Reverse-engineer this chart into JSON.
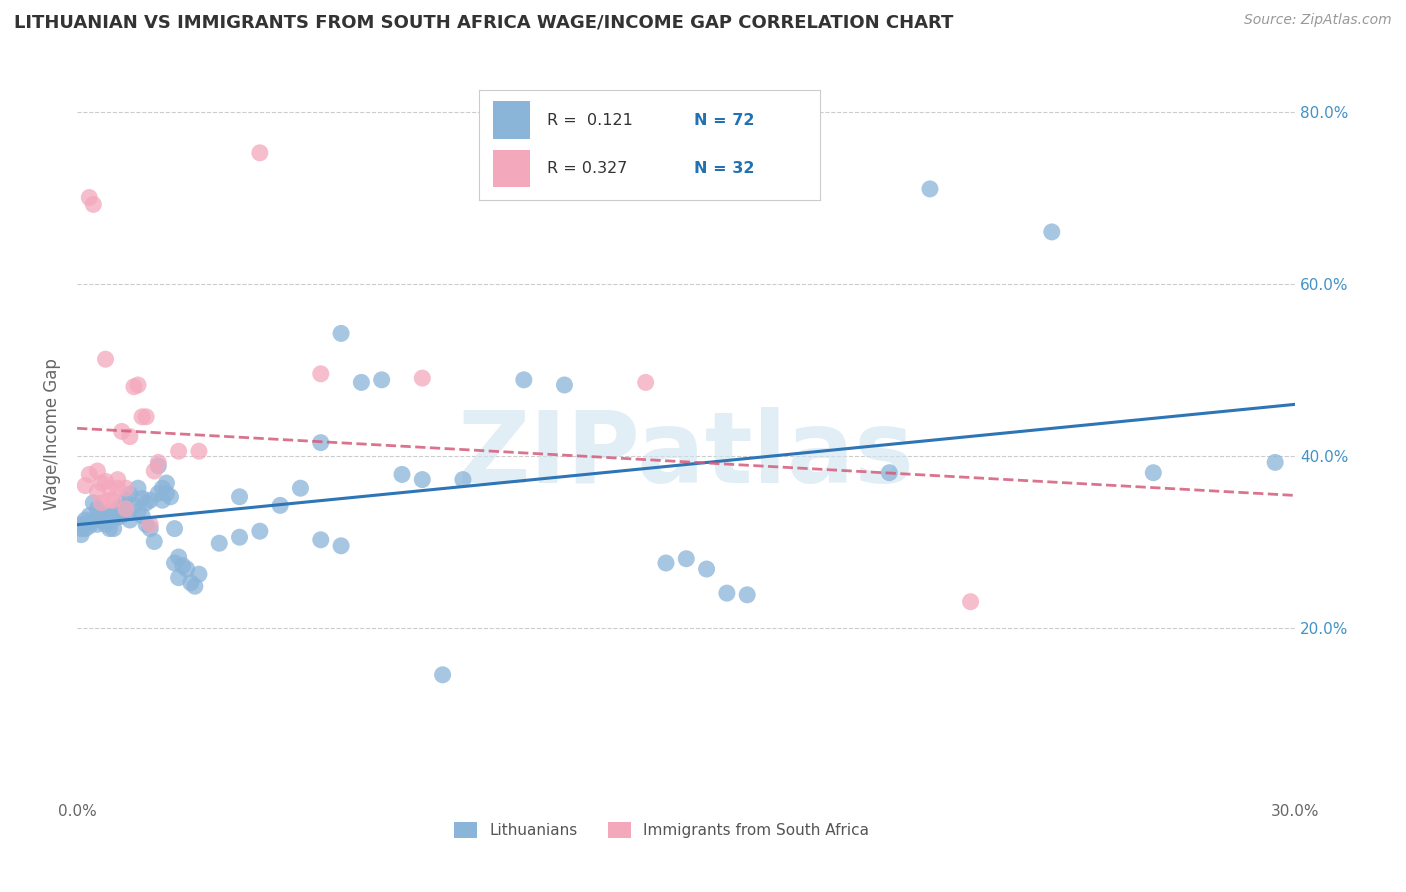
{
  "title": "LITHUANIAN VS IMMIGRANTS FROM SOUTH AFRICA WAGE/INCOME GAP CORRELATION CHART",
  "source": "Source: ZipAtlas.com",
  "ylabel": "Wage/Income Gap",
  "x_min": 0.0,
  "x_max": 0.3,
  "y_min": 0.0,
  "y_max": 0.85,
  "y_ticks": [
    0.2,
    0.4,
    0.6,
    0.8
  ],
  "y_tick_labels": [
    "20.0%",
    "40.0%",
    "60.0%",
    "80.0%"
  ],
  "legend_label1": "Lithuanians",
  "legend_label2": "Immigrants from South Africa",
  "blue_color": "#8ab4d8",
  "pink_color": "#f4a8bc",
  "blue_line_color": "#2e75b6",
  "pink_line_color": "#d45c7a",
  "watermark": "ZIPatlas",
  "blue_points": [
    [
      0.001,
      0.32
    ],
    [
      0.001,
      0.315
    ],
    [
      0.001,
      0.308
    ],
    [
      0.002,
      0.325
    ],
    [
      0.002,
      0.32
    ],
    [
      0.002,
      0.315
    ],
    [
      0.003,
      0.33
    ],
    [
      0.003,
      0.322
    ],
    [
      0.003,
      0.318
    ],
    [
      0.004,
      0.345
    ],
    [
      0.004,
      0.325
    ],
    [
      0.005,
      0.32
    ],
    [
      0.005,
      0.338
    ],
    [
      0.005,
      0.328
    ],
    [
      0.006,
      0.335
    ],
    [
      0.006,
      0.325
    ],
    [
      0.007,
      0.33
    ],
    [
      0.007,
      0.32
    ],
    [
      0.008,
      0.325
    ],
    [
      0.008,
      0.315
    ],
    [
      0.009,
      0.332
    ],
    [
      0.009,
      0.315
    ],
    [
      0.01,
      0.328
    ],
    [
      0.01,
      0.338
    ],
    [
      0.011,
      0.34
    ],
    [
      0.011,
      0.33
    ],
    [
      0.012,
      0.348
    ],
    [
      0.012,
      0.338
    ],
    [
      0.013,
      0.355
    ],
    [
      0.013,
      0.325
    ],
    [
      0.014,
      0.342
    ],
    [
      0.015,
      0.362
    ],
    [
      0.015,
      0.335
    ],
    [
      0.016,
      0.35
    ],
    [
      0.016,
      0.33
    ],
    [
      0.017,
      0.345
    ],
    [
      0.017,
      0.32
    ],
    [
      0.018,
      0.348
    ],
    [
      0.018,
      0.315
    ],
    [
      0.019,
      0.3
    ],
    [
      0.02,
      0.388
    ],
    [
      0.02,
      0.356
    ],
    [
      0.021,
      0.362
    ],
    [
      0.021,
      0.348
    ],
    [
      0.022,
      0.368
    ],
    [
      0.022,
      0.356
    ],
    [
      0.023,
      0.352
    ],
    [
      0.024,
      0.315
    ],
    [
      0.024,
      0.275
    ],
    [
      0.025,
      0.282
    ],
    [
      0.025,
      0.258
    ],
    [
      0.026,
      0.272
    ],
    [
      0.027,
      0.268
    ],
    [
      0.028,
      0.252
    ],
    [
      0.029,
      0.248
    ],
    [
      0.03,
      0.262
    ],
    [
      0.035,
      0.298
    ],
    [
      0.04,
      0.352
    ],
    [
      0.04,
      0.305
    ],
    [
      0.045,
      0.312
    ],
    [
      0.05,
      0.342
    ],
    [
      0.055,
      0.362
    ],
    [
      0.06,
      0.415
    ],
    [
      0.06,
      0.302
    ],
    [
      0.065,
      0.295
    ],
    [
      0.065,
      0.542
    ],
    [
      0.07,
      0.485
    ],
    [
      0.075,
      0.488
    ],
    [
      0.08,
      0.378
    ],
    [
      0.085,
      0.372
    ],
    [
      0.09,
      0.145
    ],
    [
      0.095,
      0.372
    ],
    [
      0.11,
      0.488
    ],
    [
      0.12,
      0.482
    ],
    [
      0.145,
      0.275
    ],
    [
      0.15,
      0.28
    ],
    [
      0.155,
      0.268
    ],
    [
      0.16,
      0.24
    ],
    [
      0.165,
      0.238
    ],
    [
      0.2,
      0.38
    ],
    [
      0.21,
      0.71
    ],
    [
      0.24,
      0.66
    ],
    [
      0.265,
      0.38
    ],
    [
      0.295,
      0.392
    ]
  ],
  "pink_points": [
    [
      0.002,
      0.365
    ],
    [
      0.003,
      0.378
    ],
    [
      0.003,
      0.7
    ],
    [
      0.004,
      0.692
    ],
    [
      0.005,
      0.382
    ],
    [
      0.005,
      0.358
    ],
    [
      0.006,
      0.368
    ],
    [
      0.006,
      0.345
    ],
    [
      0.007,
      0.37
    ],
    [
      0.007,
      0.512
    ],
    [
      0.008,
      0.348
    ],
    [
      0.008,
      0.362
    ],
    [
      0.009,
      0.348
    ],
    [
      0.01,
      0.362
    ],
    [
      0.01,
      0.372
    ],
    [
      0.011,
      0.428
    ],
    [
      0.012,
      0.362
    ],
    [
      0.012,
      0.338
    ],
    [
      0.013,
      0.422
    ],
    [
      0.014,
      0.48
    ],
    [
      0.015,
      0.482
    ],
    [
      0.016,
      0.445
    ],
    [
      0.017,
      0.445
    ],
    [
      0.018,
      0.32
    ],
    [
      0.019,
      0.382
    ],
    [
      0.02,
      0.392
    ],
    [
      0.025,
      0.405
    ],
    [
      0.03,
      0.405
    ],
    [
      0.045,
      0.752
    ],
    [
      0.06,
      0.495
    ],
    [
      0.085,
      0.49
    ],
    [
      0.14,
      0.485
    ],
    [
      0.22,
      0.23
    ]
  ]
}
